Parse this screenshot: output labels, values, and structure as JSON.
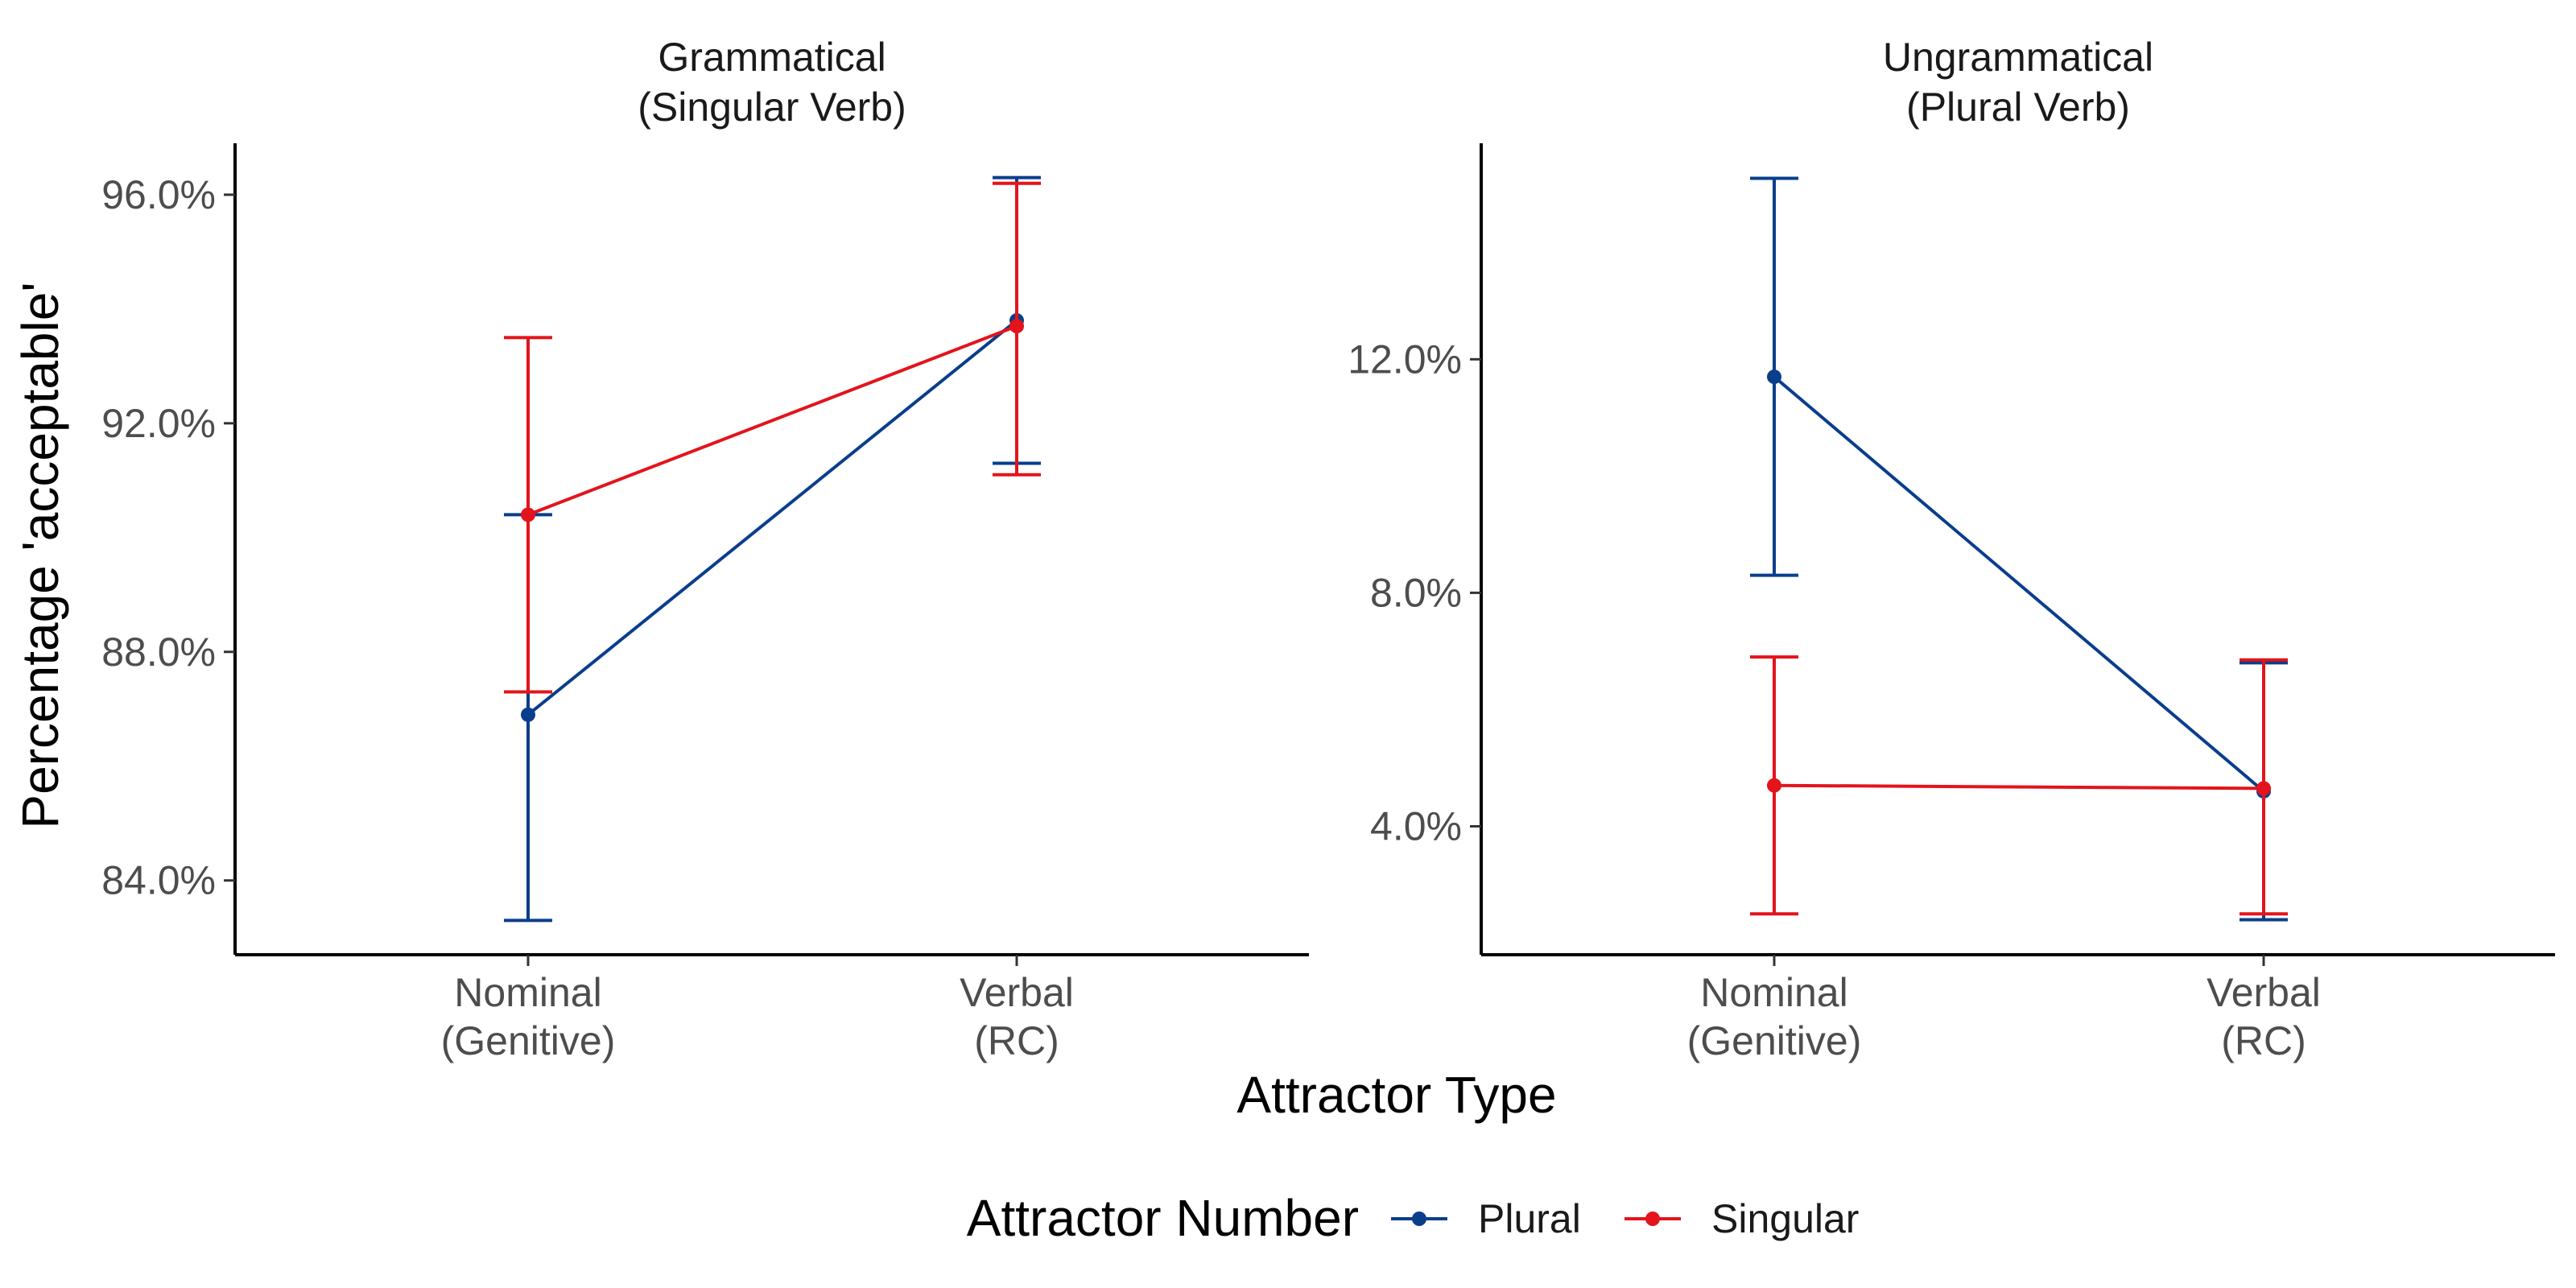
{
  "chart_data": {
    "type": "line",
    "y_axis_title": "Percentage 'acceptable'",
    "x_axis_title": "Attractor Type",
    "categories": [
      [
        "Nominal",
        "(Genitive)"
      ],
      [
        "Verbal",
        "(RC)"
      ]
    ],
    "legend": {
      "title": "Attractor Number",
      "placement": "bottom",
      "entries": [
        {
          "name": "Plural",
          "color": "#0a3e8c"
        },
        {
          "name": "Singular",
          "color": "#e3141b"
        }
      ]
    },
    "grid": false,
    "panels": [
      {
        "title": [
          "Grammatical",
          "(Singular Verb)"
        ],
        "ylim": [
          82.7,
          96.9
        ],
        "yticks": [
          84,
          88,
          92,
          96
        ],
        "ytick_labels": [
          "84.0%",
          "88.0%",
          "92.0%",
          "96.0%"
        ],
        "series": [
          {
            "name": "Plural",
            "values": [
              86.9,
              93.8
            ],
            "ci_low": [
              83.3,
              91.3
            ],
            "ci_high": [
              90.4,
              96.3
            ]
          },
          {
            "name": "Singular",
            "values": [
              90.4,
              93.7
            ],
            "ci_low": [
              87.3,
              91.1
            ],
            "ci_high": [
              93.5,
              96.2
            ]
          }
        ]
      },
      {
        "title": [
          "Ungrammatical",
          "(Plural Verb)"
        ],
        "ylim": [
          1.8,
          15.7
        ],
        "yticks": [
          4,
          8,
          12
        ],
        "ytick_labels": [
          "4.0%",
          "8.0%",
          "12.0%"
        ],
        "series": [
          {
            "name": "Plural",
            "values": [
              11.7,
              4.6
            ],
            "ci_low": [
              8.3,
              2.4
            ],
            "ci_high": [
              15.1,
              6.8
            ]
          },
          {
            "name": "Singular",
            "values": [
              4.7,
              4.65
            ],
            "ci_low": [
              2.5,
              2.5
            ],
            "ci_high": [
              6.9,
              6.85
            ]
          }
        ]
      }
    ]
  }
}
